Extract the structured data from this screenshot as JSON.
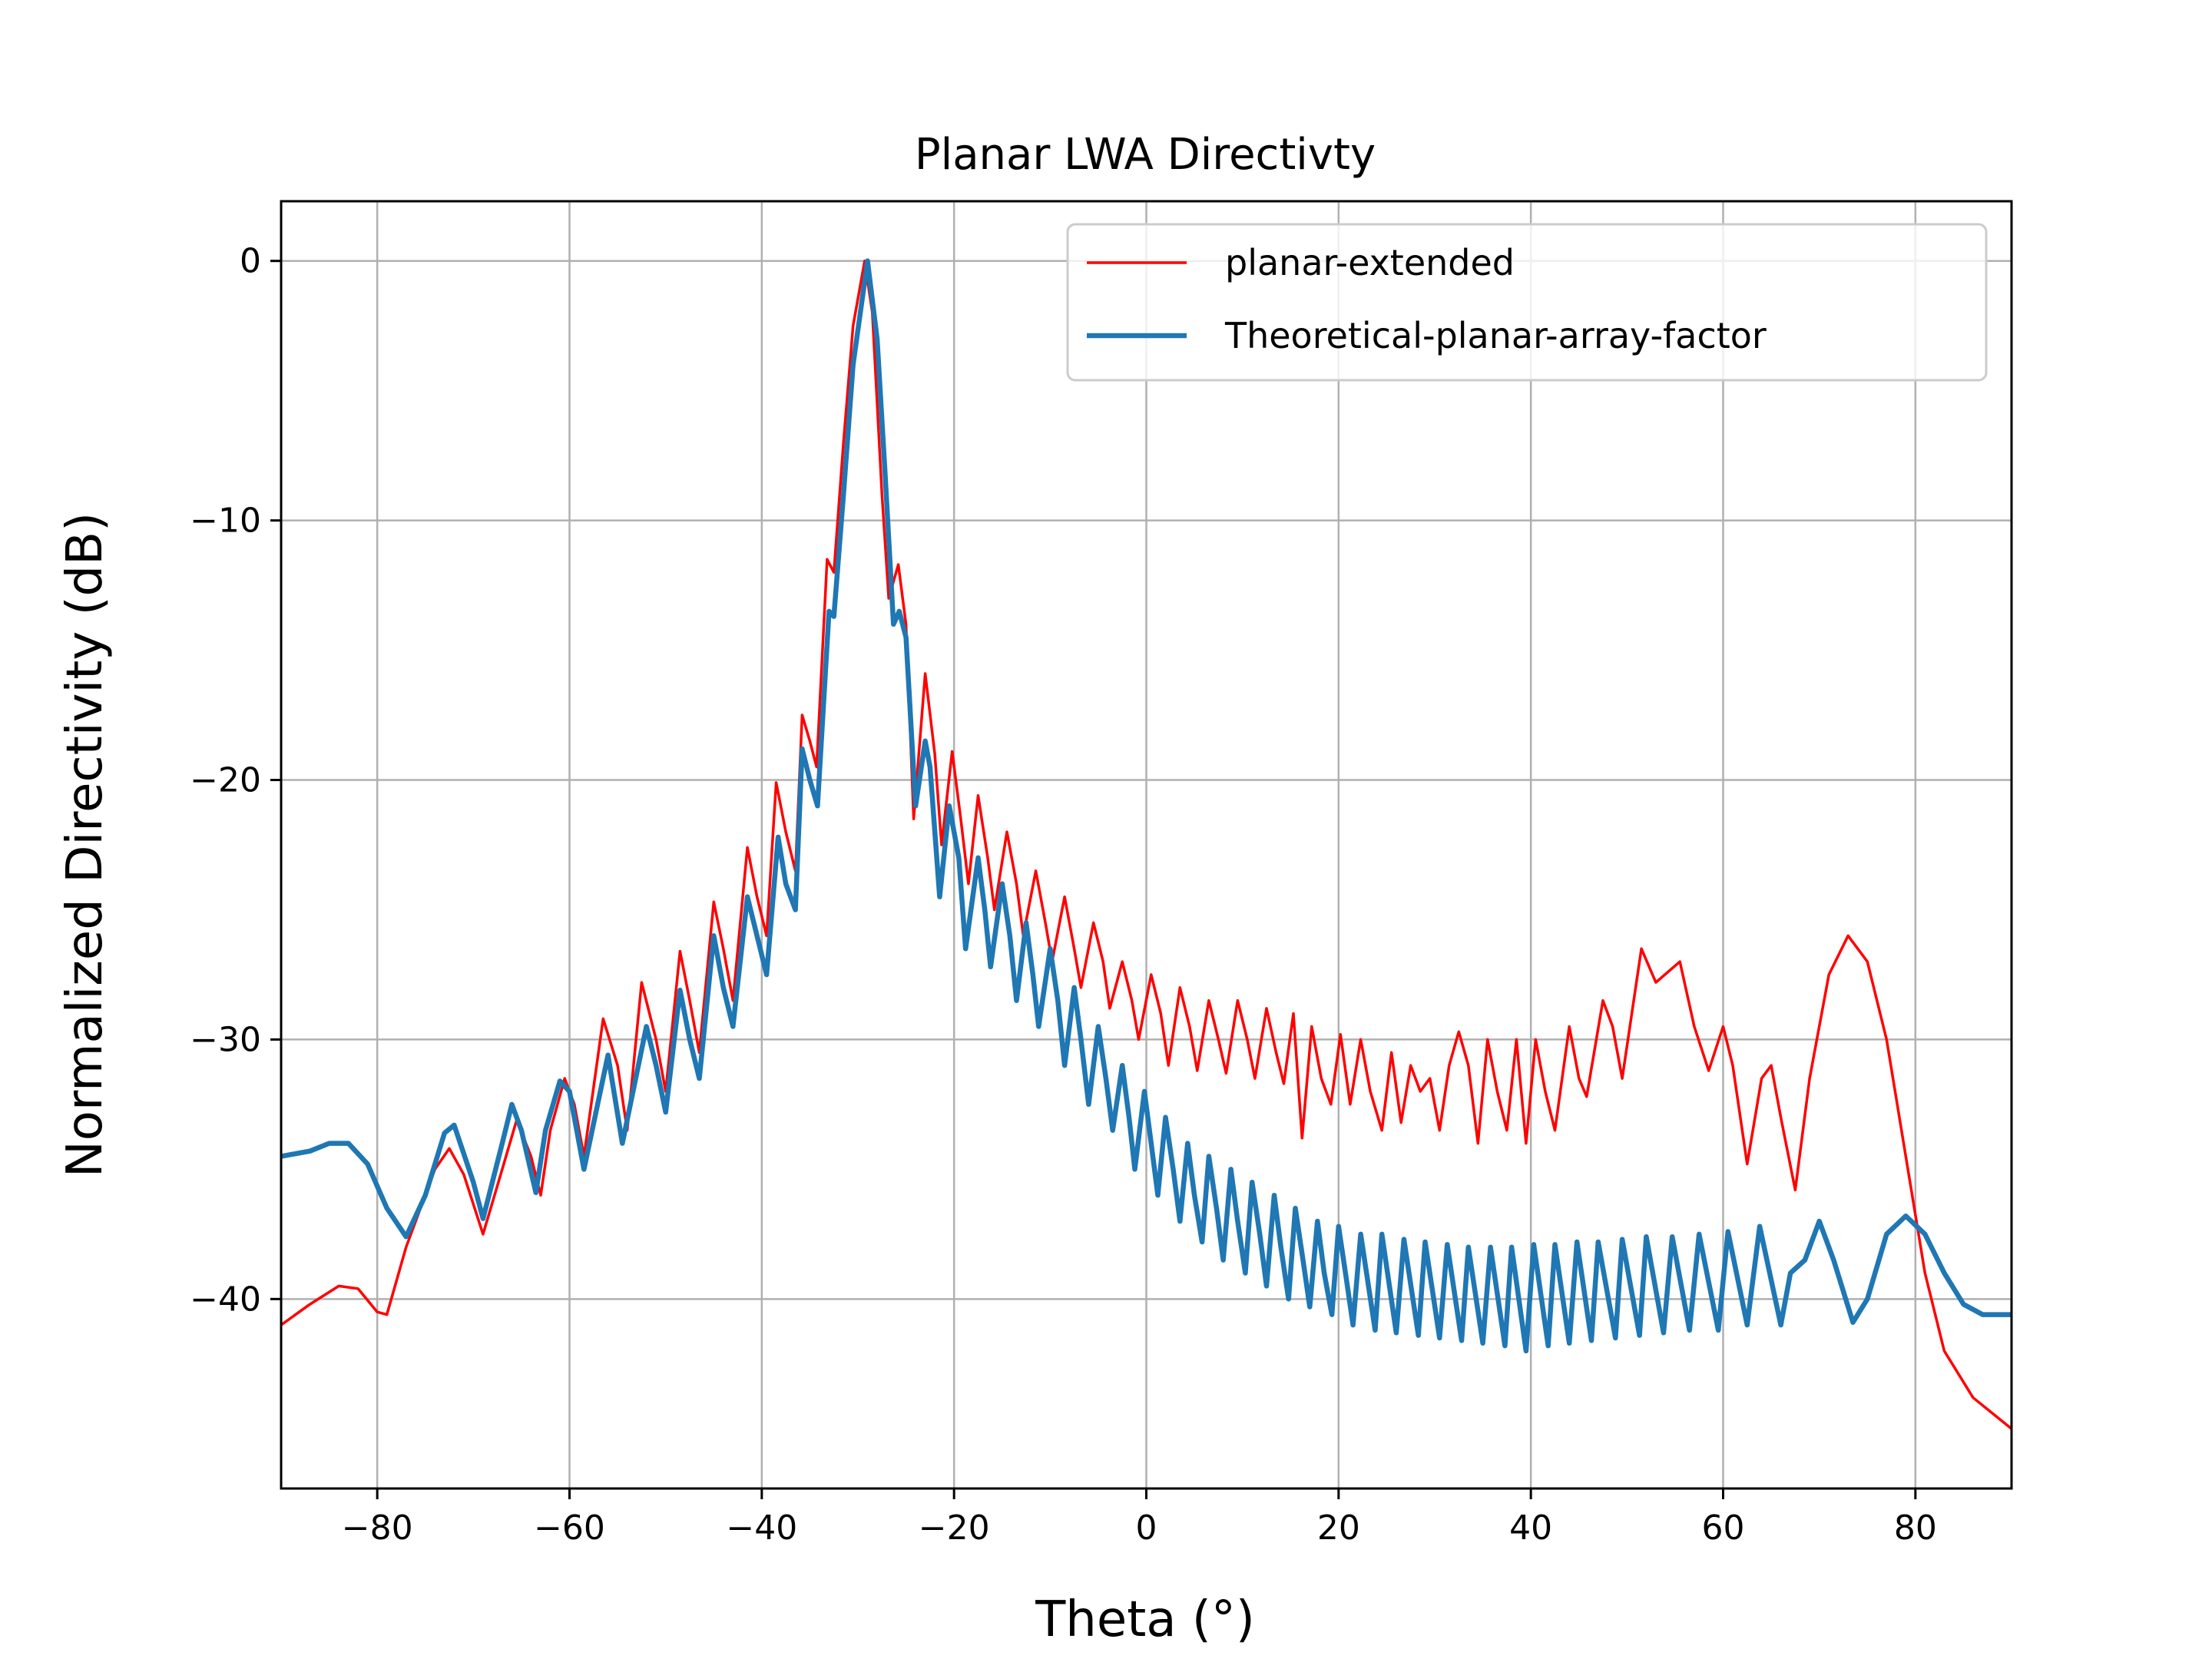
{
  "chart_data": {
    "type": "line",
    "title": "Planar LWA Directivty",
    "xlabel": "Theta (°)",
    "ylabel": "Normalized Directivity (dB)",
    "xlim": [
      -90,
      90
    ],
    "ylim": [
      -47.3,
      2.3
    ],
    "x_ticks": [
      -80,
      -60,
      -40,
      -20,
      0,
      20,
      40,
      60,
      80
    ],
    "x_tick_labels": [
      "−80",
      "−60",
      "−40",
      "−20",
      "0",
      "20",
      "40",
      "60",
      "80"
    ],
    "y_ticks": [
      0,
      -10,
      -20,
      -30,
      -40
    ],
    "y_tick_labels": [
      "0",
      "−10",
      "−20",
      "−30",
      "−40"
    ],
    "grid": true,
    "legend_position": "top-right",
    "series": [
      {
        "name": "planar-extended",
        "color": "#ff0000",
        "points": [
          [
            -90,
            -41.0
          ],
          [
            -87,
            -40.2
          ],
          [
            -84,
            -39.5
          ],
          [
            -82,
            -39.6
          ],
          [
            -80,
            -40.5
          ],
          [
            -79,
            -40.6
          ],
          [
            -77,
            -38.0
          ],
          [
            -74,
            -35.0
          ],
          [
            -72.5,
            -34.2
          ],
          [
            -71,
            -35.2
          ],
          [
            -69,
            -37.5
          ],
          [
            -67,
            -35.0
          ],
          [
            -65.5,
            -33.1
          ],
          [
            -64,
            -34.5
          ],
          [
            -63,
            -36.0
          ],
          [
            -62,
            -33.5
          ],
          [
            -60.5,
            -31.5
          ],
          [
            -59.5,
            -32.5
          ],
          [
            -58.5,
            -34.5
          ],
          [
            -56.5,
            -29.2
          ],
          [
            -55,
            -31.0
          ],
          [
            -54,
            -33.5
          ],
          [
            -52.5,
            -27.8
          ],
          [
            -51,
            -30.0
          ],
          [
            -50,
            -32.0
          ],
          [
            -48.5,
            -26.6
          ],
          [
            -47.5,
            -28.5
          ],
          [
            -46.5,
            -30.5
          ],
          [
            -45,
            -24.7
          ],
          [
            -44,
            -26.5
          ],
          [
            -43,
            -28.5
          ],
          [
            -41.5,
            -22.6
          ],
          [
            -40.5,
            -24.5
          ],
          [
            -39.5,
            -26.0
          ],
          [
            -38.5,
            -20.1
          ],
          [
            -37.5,
            -22.0
          ],
          [
            -36.5,
            -23.5
          ],
          [
            -35.8,
            -17.5
          ],
          [
            -35,
            -18.5
          ],
          [
            -34.3,
            -19.5
          ],
          [
            -33.2,
            -11.5
          ],
          [
            -32.5,
            -12.0
          ],
          [
            -31.5,
            -7.0
          ],
          [
            -30.5,
            -2.5
          ],
          [
            -29.3,
            0.0
          ],
          [
            -28.5,
            -2.0
          ],
          [
            -27.5,
            -9.0
          ],
          [
            -26.8,
            -13.0
          ],
          [
            -25.8,
            -11.7
          ],
          [
            -25,
            -14.0
          ],
          [
            -24.2,
            -21.5
          ],
          [
            -23,
            -15.9
          ],
          [
            -22,
            -19.0
          ],
          [
            -21.3,
            -22.5
          ],
          [
            -20.2,
            -18.9
          ],
          [
            -19.3,
            -21.5
          ],
          [
            -18.5,
            -24.0
          ],
          [
            -17.5,
            -20.6
          ],
          [
            -16.5,
            -23.0
          ],
          [
            -15.8,
            -25.0
          ],
          [
            -14.5,
            -22.0
          ],
          [
            -13.5,
            -24.0
          ],
          [
            -12.8,
            -26.0
          ],
          [
            -11.5,
            -23.5
          ],
          [
            -10.5,
            -25.5
          ],
          [
            -9.8,
            -27.0
          ],
          [
            -8.5,
            -24.5
          ],
          [
            -7.5,
            -26.5
          ],
          [
            -6.8,
            -28.0
          ],
          [
            -5.5,
            -25.5
          ],
          [
            -4.5,
            -27.0
          ],
          [
            -3.8,
            -28.8
          ],
          [
            -2.5,
            -27.0
          ],
          [
            -1.5,
            -28.5
          ],
          [
            -0.8,
            -30.0
          ],
          [
            0.5,
            -27.5
          ],
          [
            1.5,
            -29.0
          ],
          [
            2.3,
            -31.0
          ],
          [
            3.5,
            -28.0
          ],
          [
            4.5,
            -29.5
          ],
          [
            5.3,
            -31.2
          ],
          [
            6.5,
            -28.5
          ],
          [
            7.5,
            -30.0
          ],
          [
            8.3,
            -31.3
          ],
          [
            9.5,
            -28.5
          ],
          [
            10.5,
            -30.0
          ],
          [
            11.3,
            -31.5
          ],
          [
            12.5,
            -28.8
          ],
          [
            13.5,
            -30.5
          ],
          [
            14.3,
            -31.7
          ],
          [
            15.3,
            -29.0
          ],
          [
            16.2,
            -33.8
          ],
          [
            17.2,
            -29.5
          ],
          [
            18.2,
            -31.5
          ],
          [
            19.2,
            -32.5
          ],
          [
            20.2,
            -29.8
          ],
          [
            21.2,
            -32.5
          ],
          [
            22.3,
            -30.0
          ],
          [
            23.3,
            -32.0
          ],
          [
            24.5,
            -33.5
          ],
          [
            25.5,
            -30.5
          ],
          [
            26.5,
            -33.2
          ],
          [
            27.5,
            -31.0
          ],
          [
            28.5,
            -32.0
          ],
          [
            29.5,
            -31.5
          ],
          [
            30.5,
            -33.5
          ],
          [
            31.5,
            -31.0
          ],
          [
            32.5,
            -29.7
          ],
          [
            33.5,
            -31.0
          ],
          [
            34.5,
            -34.0
          ],
          [
            35.5,
            -30.0
          ],
          [
            36.5,
            -32.0
          ],
          [
            37.5,
            -33.5
          ],
          [
            38.5,
            -30.0
          ],
          [
            39.5,
            -34.0
          ],
          [
            40.5,
            -30.0
          ],
          [
            41.5,
            -32.0
          ],
          [
            42.5,
            -33.5
          ],
          [
            44,
            -29.5
          ],
          [
            45,
            -31.5
          ],
          [
            45.8,
            -32.2
          ],
          [
            47.5,
            -28.5
          ],
          [
            48.5,
            -29.5
          ],
          [
            49.5,
            -31.5
          ],
          [
            51.5,
            -26.5
          ],
          [
            53,
            -27.8
          ],
          [
            55.5,
            -27.0
          ],
          [
            57,
            -29.5
          ],
          [
            58.5,
            -31.2
          ],
          [
            60,
            -29.5
          ],
          [
            61,
            -31.0
          ],
          [
            62.5,
            -34.8
          ],
          [
            64,
            -31.5
          ],
          [
            65,
            -31.0
          ],
          [
            66,
            -33.0
          ],
          [
            67.5,
            -35.8
          ],
          [
            69,
            -31.5
          ],
          [
            71,
            -27.5
          ],
          [
            73,
            -26.0
          ],
          [
            75,
            -27.0
          ],
          [
            77,
            -30.0
          ],
          [
            79,
            -34.5
          ],
          [
            81,
            -39.0
          ],
          [
            83,
            -42.0
          ],
          [
            86,
            -43.8
          ],
          [
            90,
            -45.0
          ]
        ]
      },
      {
        "name": "Theoretical-planar-array-factor",
        "color": "#1f77b4",
        "points": [
          [
            -90,
            -34.5
          ],
          [
            -87,
            -34.3
          ],
          [
            -85,
            -34.0
          ],
          [
            -83,
            -34.0
          ],
          [
            -81,
            -34.8
          ],
          [
            -79,
            -36.5
          ],
          [
            -77,
            -37.6
          ],
          [
            -75,
            -36.0
          ],
          [
            -73,
            -33.6
          ],
          [
            -72,
            -33.3
          ],
          [
            -70,
            -35.5
          ],
          [
            -69,
            -36.9
          ],
          [
            -67,
            -34.0
          ],
          [
            -66,
            -32.5
          ],
          [
            -65,
            -33.5
          ],
          [
            -63.5,
            -35.9
          ],
          [
            -62.5,
            -33.5
          ],
          [
            -61,
            -31.6
          ],
          [
            -60,
            -32.0
          ],
          [
            -58.5,
            -35.0
          ],
          [
            -56,
            -30.6
          ],
          [
            -54.5,
            -34.0
          ],
          [
            -52,
            -29.5
          ],
          [
            -51,
            -31.0
          ],
          [
            -50,
            -32.8
          ],
          [
            -48.5,
            -28.1
          ],
          [
            -47.5,
            -30.0
          ],
          [
            -46.5,
            -31.5
          ],
          [
            -45,
            -26.0
          ],
          [
            -44,
            -28.0
          ],
          [
            -43,
            -29.5
          ],
          [
            -41.5,
            -24.5
          ],
          [
            -40.5,
            -26.0
          ],
          [
            -39.5,
            -27.5
          ],
          [
            -38.3,
            -22.2
          ],
          [
            -37.5,
            -24.0
          ],
          [
            -36.5,
            -25.0
          ],
          [
            -35.8,
            -18.8
          ],
          [
            -35,
            -20.0
          ],
          [
            -34.2,
            -21.0
          ],
          [
            -33,
            -13.5
          ],
          [
            -32.5,
            -13.7
          ],
          [
            -31.5,
            -9.0
          ],
          [
            -30.5,
            -4.0
          ],
          [
            -29,
            0.0
          ],
          [
            -28,
            -3.0
          ],
          [
            -27.2,
            -8.0
          ],
          [
            -26.3,
            -14.0
          ],
          [
            -25.7,
            -13.5
          ],
          [
            -25,
            -14.5
          ],
          [
            -24,
            -21.0
          ],
          [
            -23,
            -18.5
          ],
          [
            -22.5,
            -19.5
          ],
          [
            -21.5,
            -24.5
          ],
          [
            -20.5,
            -21.0
          ],
          [
            -19.5,
            -23.0
          ],
          [
            -18.8,
            -26.5
          ],
          [
            -17.5,
            -23.0
          ],
          [
            -16.8,
            -25.0
          ],
          [
            -16.2,
            -27.2
          ],
          [
            -15,
            -24.0
          ],
          [
            -14.2,
            -26.0
          ],
          [
            -13.5,
            -28.5
          ],
          [
            -12.5,
            -25.5
          ],
          [
            -11.8,
            -27.5
          ],
          [
            -11.2,
            -29.5
          ],
          [
            -10,
            -26.5
          ],
          [
            -9.2,
            -28.5
          ],
          [
            -8.5,
            -31.0
          ],
          [
            -7.5,
            -28.0
          ],
          [
            -6.8,
            -30.0
          ],
          [
            -6,
            -32.5
          ],
          [
            -5,
            -29.5
          ],
          [
            -4.2,
            -31.5
          ],
          [
            -3.5,
            -33.5
          ],
          [
            -2.5,
            -31.0
          ],
          [
            -1.8,
            -33.0
          ],
          [
            -1.2,
            -35.0
          ],
          [
            -0.2,
            -32.0
          ],
          [
            0.5,
            -34.0
          ],
          [
            1.2,
            -36.0
          ],
          [
            2,
            -33.0
          ],
          [
            2.8,
            -35.0
          ],
          [
            3.5,
            -37.0
          ],
          [
            4.3,
            -34.0
          ],
          [
            5,
            -36.0
          ],
          [
            5.8,
            -37.8
          ],
          [
            6.5,
            -34.5
          ],
          [
            7.3,
            -36.5
          ],
          [
            8,
            -38.5
          ],
          [
            8.8,
            -35.0
          ],
          [
            9.5,
            -37.0
          ],
          [
            10.3,
            -39.0
          ],
          [
            11,
            -35.5
          ],
          [
            11.8,
            -37.5
          ],
          [
            12.5,
            -39.5
          ],
          [
            13.3,
            -36.0
          ],
          [
            14,
            -38.0
          ],
          [
            14.8,
            -40.0
          ],
          [
            15.5,
            -36.5
          ],
          [
            16.3,
            -38.5
          ],
          [
            17,
            -40.3
          ],
          [
            17.8,
            -37.0
          ],
          [
            18.5,
            -39.0
          ],
          [
            19.3,
            -40.6
          ],
          [
            20,
            -37.2
          ],
          [
            20.8,
            -39.2
          ],
          [
            21.5,
            -41.0
          ],
          [
            22.3,
            -37.5
          ],
          [
            23.8,
            -41.2
          ],
          [
            24.5,
            -37.5
          ],
          [
            26,
            -41.3
          ],
          [
            26.8,
            -37.7
          ],
          [
            28.3,
            -41.4
          ],
          [
            29,
            -37.8
          ],
          [
            30.5,
            -41.5
          ],
          [
            31.3,
            -37.9
          ],
          [
            32.8,
            -41.6
          ],
          [
            33.5,
            -38.0
          ],
          [
            35,
            -41.7
          ],
          [
            35.8,
            -38.0
          ],
          [
            37.3,
            -41.8
          ],
          [
            38,
            -38.0
          ],
          [
            39.5,
            -42.0
          ],
          [
            40.3,
            -37.9
          ],
          [
            41.8,
            -41.8
          ],
          [
            42.5,
            -37.9
          ],
          [
            44,
            -41.7
          ],
          [
            44.8,
            -37.8
          ],
          [
            46.3,
            -41.6
          ],
          [
            47,
            -37.8
          ],
          [
            48.8,
            -41.5
          ],
          [
            49.5,
            -37.7
          ],
          [
            51.3,
            -41.4
          ],
          [
            52,
            -37.6
          ],
          [
            53.8,
            -41.3
          ],
          [
            54.7,
            -37.6
          ],
          [
            56.5,
            -41.2
          ],
          [
            57.5,
            -37.5
          ],
          [
            59.5,
            -41.2
          ],
          [
            60.5,
            -37.4
          ],
          [
            62.5,
            -41.0
          ],
          [
            63.8,
            -37.2
          ],
          [
            66,
            -41.0
          ],
          [
            67,
            -39.0
          ],
          [
            68.5,
            -38.5
          ],
          [
            70,
            -37.0
          ],
          [
            71.5,
            -38.5
          ],
          [
            73.5,
            -40.9
          ],
          [
            75,
            -40.0
          ],
          [
            77,
            -37.5
          ],
          [
            79,
            -36.8
          ],
          [
            81,
            -37.5
          ],
          [
            83,
            -39.0
          ],
          [
            85,
            -40.2
          ],
          [
            87,
            -40.6
          ],
          [
            90,
            -40.6
          ]
        ]
      }
    ]
  }
}
